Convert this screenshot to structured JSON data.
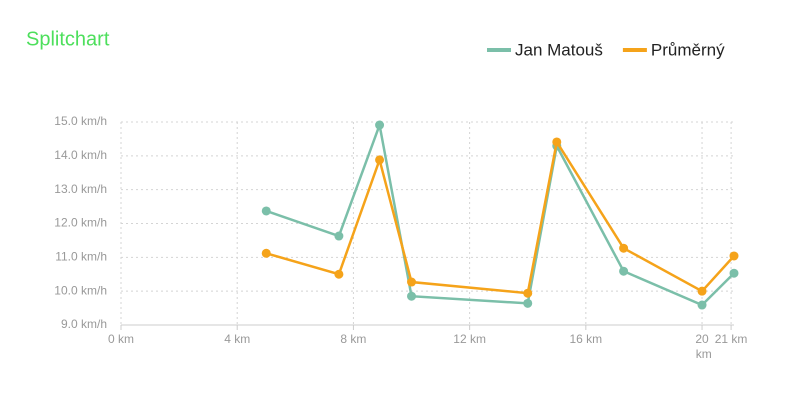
{
  "chart_data": {
    "type": "line",
    "title": "Splitchart",
    "series": [
      {
        "name": "Jan Matouš",
        "color": "#7bbfa9",
        "x": [
          5,
          7.5,
          8.9,
          10,
          14,
          15,
          17.3,
          20,
          21.1
        ],
        "values": [
          12.37,
          11.63,
          14.91,
          9.85,
          9.64,
          14.29,
          10.59,
          9.59,
          10.53
        ]
      },
      {
        "name": "Průměrný",
        "color": "#f5a31a",
        "x": [
          5,
          7.5,
          8.9,
          10,
          14,
          15,
          17.3,
          20,
          21.1
        ],
        "values": [
          11.12,
          10.5,
          13.88,
          10.27,
          9.94,
          14.41,
          11.27,
          10.0,
          11.04
        ]
      }
    ],
    "xlim": [
      0,
      21.1
    ],
    "xticks": [
      {
        "value": 0,
        "label": "0 km"
      },
      {
        "value": 4,
        "label": "4 km"
      },
      {
        "value": 8,
        "label": "8 km"
      },
      {
        "value": 12,
        "label": "12 km"
      },
      {
        "value": 16,
        "label": "16 km"
      },
      {
        "value": 20,
        "label": "20 km"
      },
      {
        "value": 21,
        "label": "21 km"
      }
    ],
    "ylim": [
      9,
      15
    ],
    "yticks": [
      {
        "value": 9,
        "label": "9.0 km/h"
      },
      {
        "value": 10,
        "label": "10.0 km/h"
      },
      {
        "value": 11,
        "label": "11.0 km/h"
      },
      {
        "value": 12,
        "label": "12.0 km/h"
      },
      {
        "value": 13,
        "label": "13.0 km/h"
      },
      {
        "value": 14,
        "label": "14.0 km/h"
      },
      {
        "value": 15,
        "label": "15.0 km/h"
      }
    ],
    "grid": true,
    "legend": "top-right"
  }
}
